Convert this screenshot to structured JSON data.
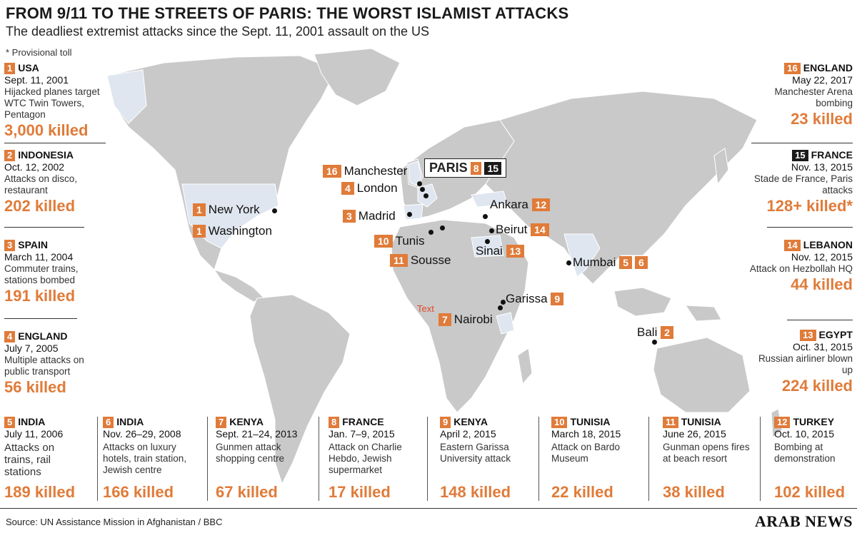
{
  "title": "FROM 9/11 TO THE STREETS OF PARIS: THE WORST ISLAMIST ATTACKS",
  "subtitle": "The deadliest extremist attacks since the Sept. 11, 2001 assault on the US",
  "note": "* Provisional toll",
  "colors": {
    "accent": "#e07b39",
    "land": "#c9c9c9",
    "highlight": "#dfe6ef",
    "dark": "#1a1a1a"
  },
  "attacks": [
    {
      "num": "1",
      "country": "USA",
      "date": "Sept. 11, 2001",
      "desc": "Hijacked planes target WTC Twin Towers, Pentagon",
      "killed": "3,000 killed"
    },
    {
      "num": "2",
      "country": "INDONESIA",
      "date": "Oct. 12, 2002",
      "desc": "Attacks on disco, restaurant",
      "killed": "202 killed"
    },
    {
      "num": "3",
      "country": "SPAIN",
      "date": "March 11, 2004",
      "desc": "Commuter trains, stations bombed",
      "killed": "191 killed"
    },
    {
      "num": "4",
      "country": "ENGLAND",
      "date": "July 7, 2005",
      "desc": "Multiple attacks on public transport",
      "killed": "56 killed"
    },
    {
      "num": "5",
      "country": "INDIA",
      "date": "July 11, 2006",
      "desc": "Attacks on trains, rail stations",
      "killed": "189 killed"
    },
    {
      "num": "6",
      "country": "INDIA",
      "date": "Nov. 26–29, 2008",
      "desc": "Attacks on luxury hotels, train station, Jewish centre",
      "killed": "166 killed"
    },
    {
      "num": "7",
      "country": "KENYA",
      "date": "Sept. 21–24, 2013",
      "desc": "Gunmen attack shopping centre",
      "killed": "67 killed"
    },
    {
      "num": "8",
      "country": "FRANCE",
      "date": "Jan. 7–9, 2015",
      "desc": "Attack on Charlie Hebdo, Jewish supermarket",
      "killed": "17 killed"
    },
    {
      "num": "9",
      "country": "KENYA",
      "date": "April 2, 2015",
      "desc": "Eastern Garissa University attack",
      "killed": "148 killed"
    },
    {
      "num": "10",
      "country": "TUNISIA",
      "date": "March 18, 2015",
      "desc": "Attack on Bardo Museum",
      "killed": "22 killed"
    },
    {
      "num": "11",
      "country": "TUNISIA",
      "date": "June 26, 2015",
      "desc": "Gunman opens fires at beach resort",
      "killed": "38 killed"
    },
    {
      "num": "12",
      "country": "TURKEY",
      "date": "Oct. 10, 2015",
      "desc": "Bombing at demonstration",
      "killed": "102 killed"
    },
    {
      "num": "13",
      "country": "EGYPT",
      "date": "Oct. 31, 2015",
      "desc": "Russian airliner blown up",
      "killed": "224 killed"
    },
    {
      "num": "14",
      "country": "LEBANON",
      "date": "Nov. 12, 2015",
      "desc": "Attack on Hezbollah HQ",
      "killed": "44 killed"
    },
    {
      "num": "15",
      "country": "FRANCE",
      "date": "Nov. 13, 2015",
      "desc": "Stade de France, Paris attacks",
      "killed": "128+ killed*"
    },
    {
      "num": "16",
      "country": "ENGLAND",
      "date": "May 22, 2017",
      "desc": "Manchester Arena bombing",
      "killed": "23 killed"
    }
  ],
  "map_labels": {
    "new_york": "New York",
    "washington": "Washington",
    "manchester": "Manchester",
    "london": "London",
    "paris": "PARIS",
    "madrid": "Madrid",
    "tunis": "Tunis",
    "sousse": "Sousse",
    "ankara": "Ankara",
    "beirut": "Beirut",
    "sinai": "Sinai",
    "mumbai": "Mumbai",
    "garissa": "Garissa",
    "nairobi": "Nairobi",
    "bali": "Bali",
    "text_note": "Text"
  },
  "source": "Source: UN Assistance Mission in Afghanistan / BBC",
  "logo": "ARAB NEWS"
}
